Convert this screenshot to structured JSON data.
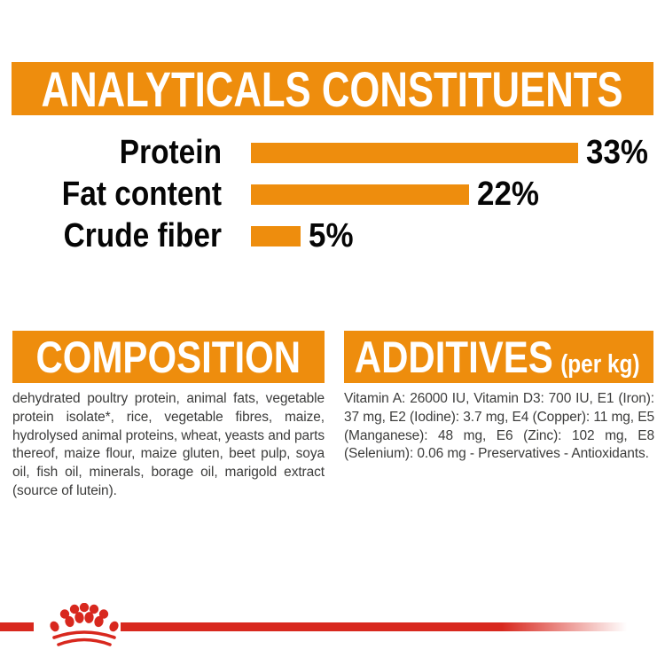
{
  "page": {
    "type": "pet-food-label-panel",
    "background": "#ffffff"
  },
  "colors": {
    "orange": "#EE8D0D",
    "red": "#D8281E",
    "body_text": "#3C3C3B",
    "label_text": "#060606",
    "banner_text": "#FFFFFF"
  },
  "header": {
    "title": "ANALYTICALS CONSTITUENTS"
  },
  "chart_data": {
    "type": "bar",
    "orientation": "horizontal",
    "title": "ANALYTICALS CONSTITUENTS",
    "categories": [
      "Protein",
      "Fat content",
      "Crude fiber"
    ],
    "values": [
      33,
      22,
      5
    ],
    "value_labels": [
      "33%",
      "22%",
      "5%"
    ],
    "unit": "%",
    "xlim": [
      0,
      33
    ],
    "bar_color": "#EE8D0D",
    "grid": false,
    "legend": false
  },
  "sections": {
    "composition": {
      "title": "COMPOSITION",
      "body": "dehydrated poultry protein, animal fats, vegetable protein isolate*, rice, vegetable fibres, maize, hydrolysed animal proteins, wheat, yeasts and parts thereof, maize flour, maize gluten, beet pulp, soya oil, fish oil, minerals, borage oil, marigold extract (source of lutein)."
    },
    "additives": {
      "title": "ADDITIVES",
      "title_suffix": "(per kg)",
      "body": "Vitamin A: 26000 IU, Vitamin D3: 700 IU, E1 (Iron): 37 mg, E2 (Iodine): 3.7 mg, E4 (Copper): 11 mg, E5 (Manganese): 48 mg, E6 (Zinc): 102 mg, E8 (Selenium): 0.06 mg - Preservatives - Antioxidants."
    }
  },
  "footer": {
    "brand_mark": "royal-canin-crown-logo"
  }
}
